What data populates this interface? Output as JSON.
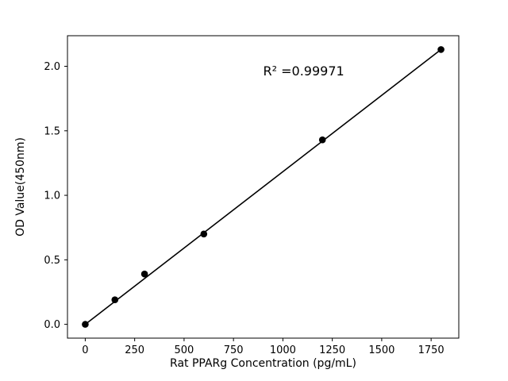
{
  "chart_data": {
    "type": "scatter",
    "title": "",
    "xlabel": "Rat PPARg Concentration (pg/mL)",
    "ylabel": "OD Value(450nm)",
    "x": [
      0,
      150,
      300,
      600,
      1200,
      1800
    ],
    "y": [
      0.0,
      0.19,
      0.39,
      0.7,
      1.43,
      2.13
    ],
    "fit_line": {
      "x1": 0,
      "y1": 0.0,
      "x2": 1800,
      "y2": 2.13
    },
    "annotation": {
      "text": "R² =0.99971",
      "x": 900,
      "y": 1.93
    },
    "x_ticks": [
      0,
      250,
      500,
      750,
      1000,
      1250,
      1500,
      1750
    ],
    "y_ticks": [
      0.0,
      0.5,
      1.0,
      1.5,
      2.0
    ],
    "y_tick_labels": [
      "0.0",
      "0.5",
      "1.0",
      "1.5",
      "2.0"
    ],
    "xlim": [
      -90,
      1890
    ],
    "ylim": [
      -0.107,
      2.237
    ],
    "grid": false,
    "legend": "none",
    "marker_color": "#000000",
    "line_color": "#000000",
    "background_color": "#ffffff"
  }
}
